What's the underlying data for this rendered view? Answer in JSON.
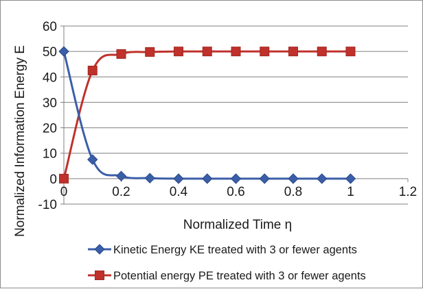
{
  "chart_data": {
    "type": "line",
    "xlabel": "Normalized Time η",
    "ylabel": "Normalized Information Energy E",
    "xlim": [
      0,
      1.2
    ],
    "ylim": [
      -10,
      60
    ],
    "xticks": [
      "0",
      "0.2",
      "0.4",
      "0.6",
      "0.8",
      "1",
      "1.2"
    ],
    "yticks": [
      "-10",
      "0",
      "10",
      "20",
      "30",
      "40",
      "50",
      "60"
    ],
    "grid": "horizontal",
    "legend_position": "bottom",
    "series": [
      {
        "name": "Kinetic Energy KE treated with 3 or fewer agents",
        "color": "#3b5ea8",
        "marker": "diamond",
        "x": [
          0,
          0.1,
          0.2,
          0.3,
          0.4,
          0.5,
          0.6,
          0.7,
          0.8,
          0.9,
          1.0
        ],
        "y": [
          50,
          7.5,
          1.0,
          0.2,
          0,
          0,
          0,
          0,
          0,
          0,
          0
        ]
      },
      {
        "name": "Potential energy PE treated with 3 or fewer agents",
        "color": "#c0312b",
        "marker": "square",
        "x": [
          0,
          0.1,
          0.2,
          0.3,
          0.4,
          0.5,
          0.6,
          0.7,
          0.8,
          0.9,
          1.0
        ],
        "y": [
          0,
          42.5,
          49,
          49.8,
          50,
          50,
          50,
          50,
          50,
          50,
          50
        ]
      }
    ]
  }
}
